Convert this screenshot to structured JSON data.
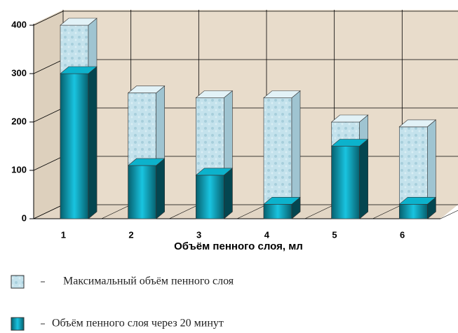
{
  "chart_data": {
    "type": "bar3d",
    "x_label": "Объём пенного слоя, мл",
    "categories": [
      "1",
      "2",
      "3",
      "4",
      "5",
      "6"
    ],
    "series": [
      {
        "name": "Максимальный объём пенного слоя",
        "color": "#b9dbe6",
        "values": [
          400,
          260,
          250,
          250,
          200,
          190
        ]
      },
      {
        "name": "Объём пенного слоя через 20 минут",
        "color": "#0a93a8",
        "values": [
          300,
          110,
          90,
          30,
          150,
          30
        ]
      }
    ],
    "ylim": [
      0,
      400
    ],
    "yticks": [
      0,
      100,
      200,
      300,
      400
    ],
    "grid": true
  }
}
